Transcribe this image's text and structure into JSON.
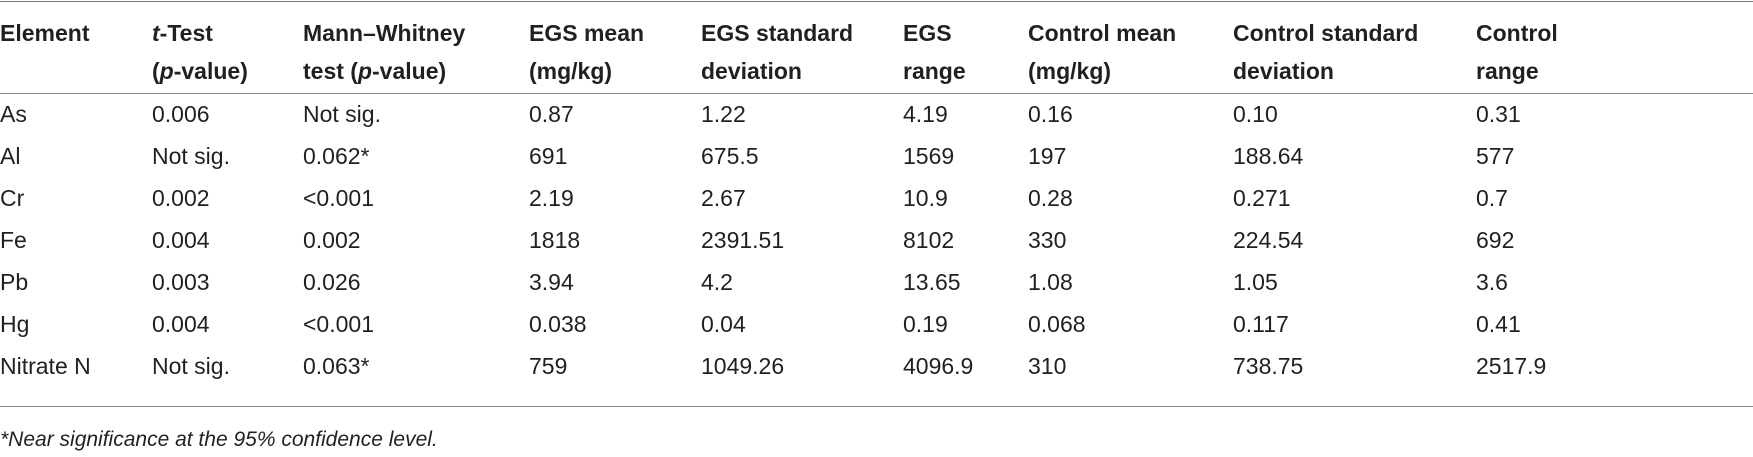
{
  "table": {
    "headers": [
      {
        "lines": [
          "Element",
          ""
        ]
      },
      {
        "lines": [
          "t-Test",
          "(p-value)"
        ],
        "italic_prefix": [
          "t",
          "p"
        ]
      },
      {
        "lines": [
          "Mann–Whitney",
          "test (p-value)"
        ]
      },
      {
        "lines": [
          "EGS mean",
          "(mg/kg)"
        ]
      },
      {
        "lines": [
          "EGS standard",
          "deviation"
        ]
      },
      {
        "lines": [
          "EGS",
          "range"
        ]
      },
      {
        "lines": [
          "Control mean",
          "(mg/kg)"
        ]
      },
      {
        "lines": [
          "Control standard",
          "deviation"
        ]
      },
      {
        "lines": [
          "Control",
          "range"
        ]
      }
    ],
    "rows": [
      [
        "As",
        "0.006",
        "Not sig.",
        "0.87",
        "1.22",
        "4.19",
        "0.16",
        "0.10",
        "0.31"
      ],
      [
        "Al",
        "Not sig.",
        "0.062*",
        "691",
        "675.5",
        "1569",
        "197",
        "188.64",
        "577"
      ],
      [
        "Cr",
        "0.002",
        "<0.001",
        "2.19",
        "2.67",
        "10.9",
        "0.28",
        "0.271",
        "0.7"
      ],
      [
        "Fe",
        "0.004",
        "0.002",
        "1818",
        "2391.51",
        "8102",
        "330",
        "224.54",
        "692"
      ],
      [
        "Pb",
        "0.003",
        "0.026",
        "3.94",
        "4.2",
        "13.65",
        "1.08",
        "1.05",
        "3.6"
      ],
      [
        "Hg",
        "0.004",
        "<0.001",
        "0.038",
        "0.04",
        "0.19",
        "0.068",
        "0.117",
        "0.41"
      ],
      [
        "Nitrate N",
        "Not sig.",
        "0.063*",
        "759",
        "1049.26",
        "4096.9",
        "310",
        "738.75",
        "2517.9"
      ]
    ]
  },
  "footnote": "*Near significance at the 95% confidence level."
}
